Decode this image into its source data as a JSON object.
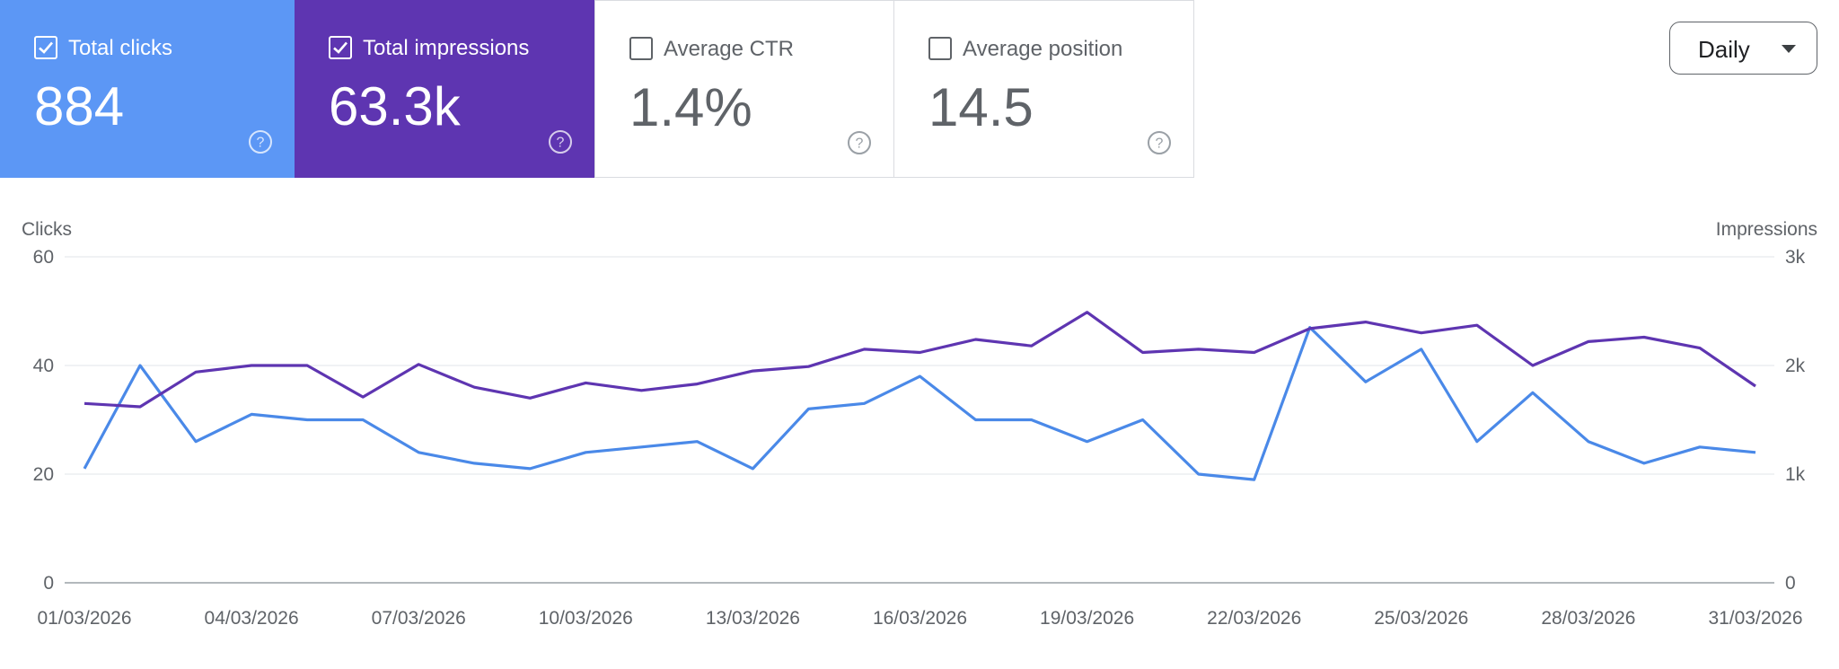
{
  "metrics": [
    {
      "label": "Total clicks",
      "value": "884",
      "checked": true
    },
    {
      "label": "Total impressions",
      "value": "63.3k",
      "checked": true
    },
    {
      "label": "Average CTR",
      "value": "1.4%",
      "checked": false
    },
    {
      "label": "Average position",
      "value": "14.5",
      "checked": false
    }
  ],
  "period_select": {
    "value": "Daily"
  },
  "colors": {
    "clicks": "#4a89e8",
    "impressions": "#5e35b1",
    "grid": "#e8eaed",
    "axis": "#9aa0a6"
  },
  "icons": {
    "checkbox": "checkbox-checked-icon",
    "help": "help-circle-icon",
    "dropdown": "caret-down-icon"
  },
  "chart_data": {
    "type": "line",
    "left_axis_label": "Clicks",
    "right_axis_label": "Impressions",
    "y_left_ticks": [
      "0",
      "20",
      "40",
      "60"
    ],
    "y_right_ticks": [
      "0",
      "1k",
      "2k",
      "3k"
    ],
    "ylim_left": [
      0,
      60
    ],
    "ylim_right": [
      0,
      3000
    ],
    "x_tick_labels": [
      "01/03/2026",
      "04/03/2026",
      "07/03/2026",
      "10/03/2026",
      "13/03/2026",
      "16/03/2026",
      "19/03/2026",
      "22/03/2026",
      "25/03/2026",
      "28/03/2026",
      "31/03/2026"
    ],
    "x": [
      "01/03/2026",
      "02/03/2026",
      "03/03/2026",
      "04/03/2026",
      "05/03/2026",
      "06/03/2026",
      "07/03/2026",
      "08/03/2026",
      "09/03/2026",
      "10/03/2026",
      "11/03/2026",
      "12/03/2026",
      "13/03/2026",
      "14/03/2026",
      "15/03/2026",
      "16/03/2026",
      "17/03/2026",
      "18/03/2026",
      "19/03/2026",
      "20/03/2026",
      "21/03/2026",
      "22/03/2026",
      "23/03/2026",
      "24/03/2026",
      "25/03/2026",
      "26/03/2026",
      "27/03/2026",
      "28/03/2026",
      "29/03/2026",
      "30/03/2026",
      "31/03/2026"
    ],
    "series": [
      {
        "axis": "left",
        "color": "#4a89e8",
        "values": [
          21,
          40,
          26,
          31,
          30,
          30,
          24,
          22,
          21,
          24,
          25,
          26,
          21,
          32,
          33,
          38,
          30,
          30,
          26,
          30,
          20,
          19,
          47,
          37,
          43,
          26,
          35,
          26,
          22,
          25,
          24
        ]
      },
      {
        "axis": "right",
        "color": "#5e35b1",
        "values": [
          1650,
          1620,
          1940,
          2000,
          2000,
          1710,
          2010,
          1800,
          1700,
          1840,
          1770,
          1830,
          1950,
          1990,
          2150,
          2120,
          2240,
          2180,
          2490,
          2120,
          2150,
          2120,
          2340,
          2400,
          2300,
          2370,
          2000,
          2220,
          2260,
          2160,
          1810
        ]
      }
    ],
    "grid": true
  }
}
